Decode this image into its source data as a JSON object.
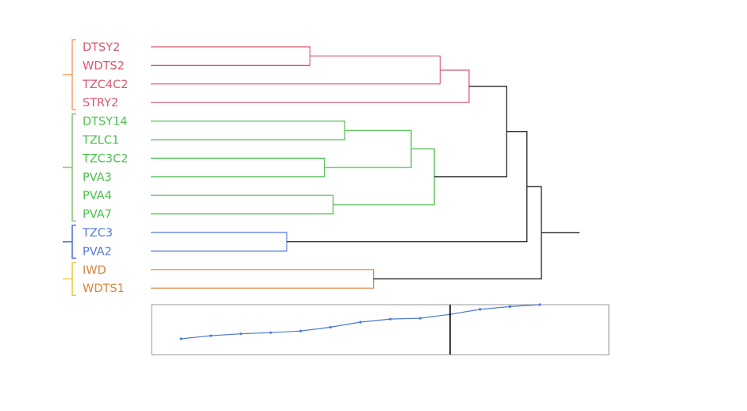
{
  "chart_data": {
    "type": "dendrogram",
    "leaves": [
      {
        "label": "DTSY2",
        "cluster": 0
      },
      {
        "label": "WDTS2",
        "cluster": 0
      },
      {
        "label": "TZC4C2",
        "cluster": 0
      },
      {
        "label": "STRY2",
        "cluster": 0
      },
      {
        "label": "DTSY14",
        "cluster": 1
      },
      {
        "label": "TZLC1",
        "cluster": 1
      },
      {
        "label": "TZC3C2",
        "cluster": 1
      },
      {
        "label": "PVA3",
        "cluster": 1
      },
      {
        "label": "PVA4",
        "cluster": 1
      },
      {
        "label": "PVA7",
        "cluster": 1
      },
      {
        "label": "TZC3",
        "cluster": 2
      },
      {
        "label": "PVA2",
        "cluster": 2
      },
      {
        "label": "IWD",
        "cluster": 3
      },
      {
        "label": "WDTS1",
        "cluster": 3
      }
    ],
    "clusters": [
      {
        "line_color": "#d9566e",
        "label_color": "#d9566e",
        "bracket_color": "#f2a774"
      },
      {
        "line_color": "#4cbf4c",
        "label_color": "#4cbf4c",
        "bracket_color": "#8cc97a"
      },
      {
        "line_color": "#4f79d6",
        "label_color": "#4f79d6",
        "bracket_color": "#4f79d6"
      },
      {
        "line_color": "#d9853b",
        "label_color": "#d9853b",
        "bracket_color": "#f0c94a"
      }
    ],
    "merges": [
      {
        "left": "L0",
        "right": "L1",
        "height": 0.55,
        "color": "#d9566e"
      },
      {
        "left": "M0",
        "right": "L2",
        "height": 1.0,
        "color": "#d9566e"
      },
      {
        "left": "M1",
        "right": "L3",
        "height": 1.1,
        "color": "#d9566e"
      },
      {
        "left": "L4",
        "right": "L5",
        "height": 0.67,
        "color": "#4cbf4c"
      },
      {
        "left": "L6",
        "right": "L7",
        "height": 0.6,
        "color": "#4cbf4c"
      },
      {
        "left": "M3",
        "right": "M4",
        "height": 0.9,
        "color": "#4cbf4c"
      },
      {
        "left": "L8",
        "right": "L9",
        "height": 0.63,
        "color": "#4cbf4c"
      },
      {
        "left": "M5",
        "right": "M6",
        "height": 0.98,
        "color": "#4cbf4c"
      },
      {
        "left": "M2",
        "right": "M7",
        "height": 1.23,
        "color": "#111111"
      },
      {
        "left": "L10",
        "right": "L11",
        "height": 0.47,
        "color": "#4f79d6"
      },
      {
        "left": "M8",
        "right": "M9",
        "height": 1.3,
        "color": "#111111"
      },
      {
        "left": "L12",
        "right": "L13",
        "height": 0.77,
        "color": "#d9853b"
      },
      {
        "left": "M10",
        "right": "M11",
        "height": 1.35,
        "color": "#111111"
      }
    ],
    "height_range": [
      0,
      1.35
    ],
    "root_stub_color": "#111111",
    "inset": {
      "type": "line",
      "x": [
        1,
        2,
        3,
        4,
        5,
        6,
        7,
        8,
        9,
        10,
        11,
        12,
        13
      ],
      "values": [
        0.47,
        0.55,
        0.6,
        0.63,
        0.67,
        0.77,
        0.9,
        0.98,
        1.0,
        1.1,
        1.23,
        1.3,
        1.35
      ],
      "threshold": 1.1,
      "line_color": "#4f79d6",
      "threshold_color": "#111111",
      "frame_color": "#999999"
    }
  }
}
